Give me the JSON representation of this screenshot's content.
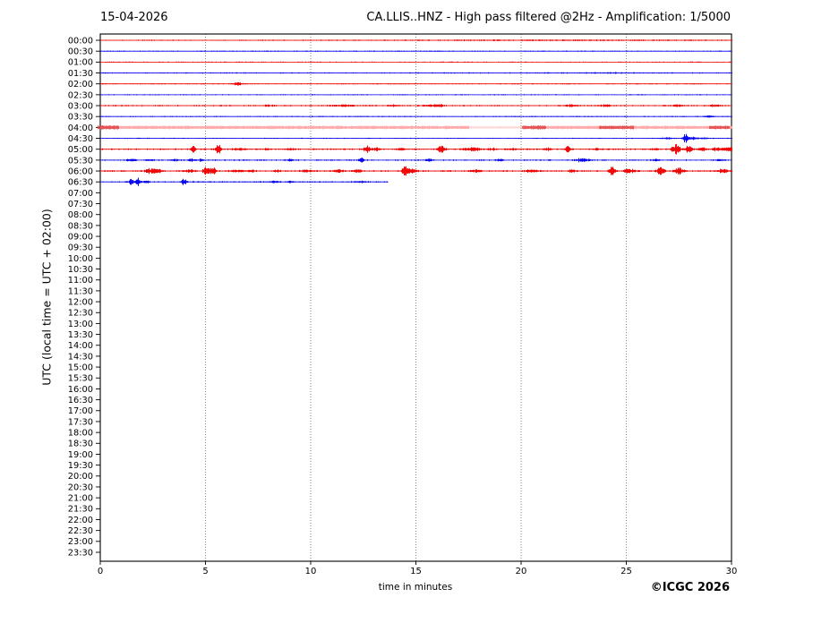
{
  "header": {
    "date": "15-04-2026",
    "title": "CA.LLIS..HNZ - High pass filtered @2Hz - Amplification: 1/5000"
  },
  "footer": {
    "copyright": "©ICGC 2026"
  },
  "colors": {
    "red_trace": "#ee0000",
    "blue_trace": "#0000ee",
    "saturated_band": "#ffaaaa",
    "saturated_dark": "#e04040",
    "grid": "#777777",
    "axis": "#000000",
    "background": "#ffffff"
  },
  "chart_data": {
    "type": "line",
    "subtype": "helicorder-seismogram",
    "title": "CA.LLIS..HNZ - High pass filtered @2Hz - Amplification: 1/5000",
    "date": "15-04-2026",
    "xlabel": "time in minutes",
    "ylabel": "UTC (local time = UTC + 02:00)",
    "xlim": [
      0,
      30
    ],
    "x_ticks": [
      0,
      5,
      10,
      15,
      20,
      25,
      30
    ],
    "x_gridlines": [
      5,
      10,
      15,
      20,
      25
    ],
    "grid_style": "dotted",
    "minutes_per_row": 30,
    "y_ticks": [
      "00:00",
      "00:30",
      "01:00",
      "01:30",
      "02:00",
      "02:30",
      "03:00",
      "03:30",
      "04:00",
      "04:30",
      "05:00",
      "05:30",
      "06:00",
      "06:30",
      "07:00",
      "07:30",
      "08:00",
      "08:30",
      "09:00",
      "09:30",
      "10:00",
      "10:30",
      "11:00",
      "11:30",
      "12:00",
      "12:30",
      "13:00",
      "13:30",
      "14:00",
      "14:30",
      "15:00",
      "15:30",
      "16:00",
      "16:30",
      "17:00",
      "17:30",
      "18:00",
      "18:30",
      "19:00",
      "19:30",
      "20:00",
      "20:30",
      "21:00",
      "21:30",
      "22:00",
      "22:30",
      "23:00",
      "23:30"
    ],
    "traces": [
      {
        "utc": "00:00",
        "color": "red",
        "segments": [
          [
            0,
            30,
            1
          ]
        ],
        "noise": 0.5,
        "events": [
          [
            22,
            0.35,
            8
          ]
        ]
      },
      {
        "utc": "00:30",
        "color": "blue",
        "segments": [
          [
            0,
            30,
            1
          ]
        ],
        "noise": 0.45,
        "events": []
      },
      {
        "utc": "01:00",
        "color": "red",
        "segments": [
          [
            0,
            30,
            1
          ]
        ],
        "noise": 0.45,
        "events": []
      },
      {
        "utc": "01:30",
        "color": "blue",
        "segments": [
          [
            0,
            30,
            1
          ]
        ],
        "noise": 0.5,
        "events": [
          [
            24,
            0.35,
            2.5
          ]
        ]
      },
      {
        "utc": "02:00",
        "color": "red",
        "segments": [
          [
            0,
            30,
            1
          ]
        ],
        "noise": 0.45,
        "events": [
          [
            6.5,
            1.4,
            0.22
          ]
        ]
      },
      {
        "utc": "02:30",
        "color": "blue",
        "segments": [
          [
            0,
            30,
            1
          ]
        ],
        "noise": 0.45,
        "events": []
      },
      {
        "utc": "03:00",
        "color": "red",
        "segments": [
          [
            0,
            30,
            1
          ]
        ],
        "noise": 0.65,
        "events": [
          [
            8.0,
            0.7,
            0.3
          ],
          [
            11.6,
            1.0,
            0.5
          ],
          [
            13.9,
            0.9,
            0.25
          ],
          [
            15.7,
            0.9,
            0.4
          ],
          [
            16.15,
            1.0,
            0.2
          ],
          [
            22.3,
            1.1,
            0.35
          ],
          [
            24.0,
            0.8,
            0.3
          ],
          [
            27.4,
            1.0,
            0.3
          ],
          [
            29.2,
            1.0,
            0.3
          ]
        ]
      },
      {
        "utc": "03:30",
        "color": "blue",
        "segments": [
          [
            0,
            30,
            1
          ]
        ],
        "noise": 0.45,
        "events": [
          [
            28.9,
            0.8,
            0.3
          ]
        ]
      },
      {
        "utc": "04:00",
        "color": "red",
        "saturated": true,
        "band_amp": 1.6,
        "segments": [
          [
            0,
            17.5,
            1
          ],
          [
            17.5,
            20.1,
            0.28
          ],
          [
            20.1,
            30,
            1
          ]
        ],
        "noise": 0.5,
        "events": [],
        "dark_events": [
          [
            0.35,
            1.9,
            0.3
          ],
          [
            20.6,
            1.9,
            0.35
          ],
          [
            24.5,
            1.8,
            0.5
          ],
          [
            29.4,
            1.6,
            0.3
          ]
        ]
      },
      {
        "utc": "04:30",
        "color": "blue",
        "segments": [
          [
            0,
            30,
            1
          ]
        ],
        "noise": 0.45,
        "events": [
          [
            26.9,
            0.7,
            0.4
          ],
          [
            27.8,
            4.4,
            0.13
          ],
          [
            28.15,
            1.5,
            0.18
          ],
          [
            28.65,
            0.9,
            0.2
          ]
        ]
      },
      {
        "utc": "05:00",
        "color": "red",
        "segments": [
          [
            0,
            30,
            1
          ]
        ],
        "noise": 0.7,
        "events": [
          [
            4.4,
            3.0,
            0.12
          ],
          [
            5.6,
            4.2,
            0.14
          ],
          [
            6.6,
            1.1,
            0.35
          ],
          [
            7.9,
            0.8,
            0.15
          ],
          [
            9.0,
            0.7,
            0.2
          ],
          [
            12.65,
            4.0,
            0.14
          ],
          [
            13.1,
            1.3,
            0.18
          ],
          [
            14.3,
            1.4,
            0.18
          ],
          [
            16.2,
            4.6,
            0.15
          ],
          [
            17.7,
            1.8,
            0.4
          ],
          [
            18.6,
            1.0,
            0.2
          ],
          [
            19.5,
            1.0,
            0.2
          ],
          [
            21.2,
            1.3,
            0.18
          ],
          [
            22.2,
            3.4,
            0.12
          ],
          [
            23.6,
            0.9,
            0.18
          ],
          [
            26.3,
            1.0,
            0.18
          ],
          [
            27.35,
            4.6,
            0.2
          ],
          [
            27.95,
            3.6,
            0.16
          ],
          [
            28.6,
            1.4,
            0.22
          ],
          [
            29.3,
            1.4,
            0.25
          ],
          [
            29.85,
            1.8,
            0.3
          ]
        ]
      },
      {
        "utc": "05:30",
        "color": "blue",
        "segments": [
          [
            0,
            30,
            1
          ]
        ],
        "noise": 0.62,
        "events": [
          [
            1.3,
            0.9,
            0.15
          ],
          [
            1.6,
            1.0,
            0.15
          ],
          [
            2.4,
            0.9,
            0.15
          ],
          [
            3.5,
            1.0,
            0.2
          ],
          [
            4.3,
            1.1,
            0.15
          ],
          [
            4.8,
            1.4,
            0.12
          ],
          [
            9.0,
            0.8,
            0.2
          ],
          [
            12.4,
            2.0,
            0.12
          ],
          [
            15.6,
            1.1,
            0.2
          ],
          [
            19.0,
            0.9,
            0.2
          ],
          [
            22.9,
            1.6,
            0.35
          ],
          [
            26.4,
            0.9,
            0.2
          ],
          [
            29.4,
            0.9,
            0.2
          ]
        ]
      },
      {
        "utc": "06:00",
        "color": "red",
        "segments": [
          [
            0,
            30,
            1
          ]
        ],
        "noise": 0.7,
        "events": [
          [
            2.35,
            2.2,
            0.25
          ],
          [
            2.7,
            1.7,
            0.18
          ],
          [
            4.2,
            1.3,
            0.3
          ],
          [
            5.05,
            4.6,
            0.17
          ],
          [
            5.35,
            3.6,
            0.13
          ],
          [
            6.5,
            1.2,
            0.35
          ],
          [
            7.2,
            1.0,
            0.2
          ],
          [
            8.4,
            1.2,
            0.2
          ],
          [
            9.8,
            1.0,
            0.3
          ],
          [
            11.3,
            1.4,
            0.25
          ],
          [
            12.2,
            1.2,
            0.2
          ],
          [
            14.5,
            5.2,
            0.16
          ],
          [
            14.85,
            1.8,
            0.2
          ],
          [
            17.8,
            1.2,
            0.25
          ],
          [
            20.5,
            1.4,
            0.3
          ],
          [
            22.4,
            1.1,
            0.2
          ],
          [
            24.3,
            4.0,
            0.15
          ],
          [
            25.1,
            2.0,
            0.28
          ],
          [
            26.6,
            3.6,
            0.17
          ],
          [
            27.5,
            3.1,
            0.24
          ],
          [
            29.6,
            1.6,
            0.4
          ]
        ]
      },
      {
        "utc": "06:30",
        "color": "blue",
        "segments": [
          [
            0,
            13.7,
            1
          ]
        ],
        "noise": 0.6,
        "events": [
          [
            1.45,
            2.8,
            0.12
          ],
          [
            1.78,
            3.4,
            0.12
          ],
          [
            2.15,
            1.1,
            0.15
          ],
          [
            3.95,
            3.1,
            0.12
          ],
          [
            8.2,
            0.8,
            0.3
          ],
          [
            9.0,
            0.7,
            0.2
          ],
          [
            12.3,
            0.7,
            0.3
          ]
        ]
      }
    ]
  }
}
